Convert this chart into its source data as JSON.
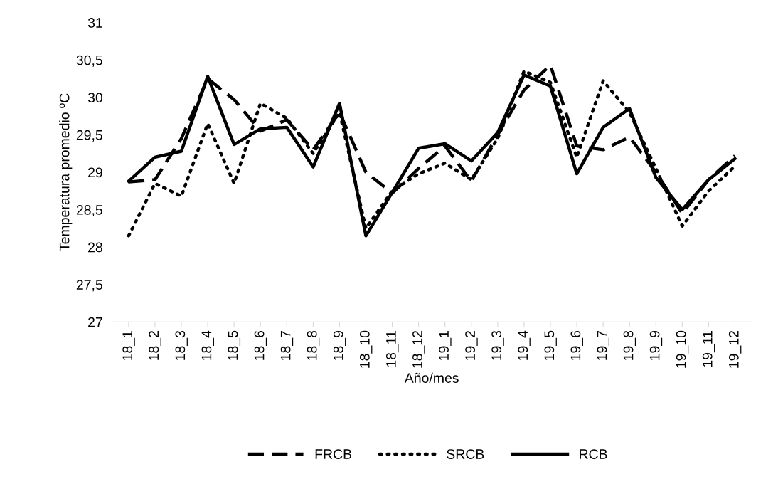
{
  "chart_data": {
    "type": "line",
    "xlabel": "Año/mes",
    "ylabel": "Temperatura promedio ºC",
    "categories": [
      "18_1",
      "18_2",
      "18_3",
      "18_4",
      "18_5",
      "18_6",
      "18_7",
      "18_8",
      "18_9",
      "18_10",
      "18_11",
      "18_12",
      "19_1",
      "19_2",
      "19_3",
      "19_4",
      "19_5",
      "19_6",
      "19_7",
      "19_8",
      "19_9",
      "19_10",
      "19_11",
      "19_12"
    ],
    "series": [
      {
        "name": "FRCB",
        "color": "#000000",
        "line_style": "dashed",
        "values": [
          28.87,
          28.9,
          29.45,
          30.25,
          29.97,
          29.55,
          29.7,
          29.3,
          29.8,
          29.0,
          28.72,
          29.05,
          29.35,
          28.88,
          29.5,
          30.1,
          30.43,
          29.35,
          29.3,
          29.47,
          29.0,
          28.45,
          28.9,
          29.22
        ]
      },
      {
        "name": "SRCB",
        "color": "#000000",
        "line_style": "dotted",
        "values": [
          28.15,
          28.85,
          28.68,
          29.65,
          28.85,
          29.92,
          29.72,
          29.25,
          29.8,
          28.25,
          28.75,
          28.98,
          29.12,
          28.9,
          29.45,
          30.35,
          30.2,
          29.2,
          30.22,
          29.8,
          29.05,
          28.28,
          28.75,
          29.08
        ]
      },
      {
        "name": "RCB",
        "color": "#000000",
        "line_style": "solid",
        "values": [
          28.88,
          29.2,
          29.28,
          30.28,
          29.37,
          29.58,
          29.6,
          29.07,
          29.92,
          28.15,
          28.73,
          29.32,
          29.38,
          29.15,
          29.53,
          30.3,
          30.15,
          28.98,
          29.6,
          29.85,
          28.93,
          28.5,
          28.9,
          29.18
        ]
      }
    ],
    "ylim": [
      27,
      31
    ],
    "yticks": [
      27,
      {
        "value": 27.5,
        "label": "27,5"
      },
      28,
      {
        "value": 28.5,
        "label": "28,5"
      },
      29,
      {
        "value": 29.5,
        "label": "29,5"
      },
      30,
      {
        "value": 30.5,
        "label": "30,5"
      },
      31
    ],
    "grid": false,
    "legend": "bottom",
    "marker": "none"
  }
}
